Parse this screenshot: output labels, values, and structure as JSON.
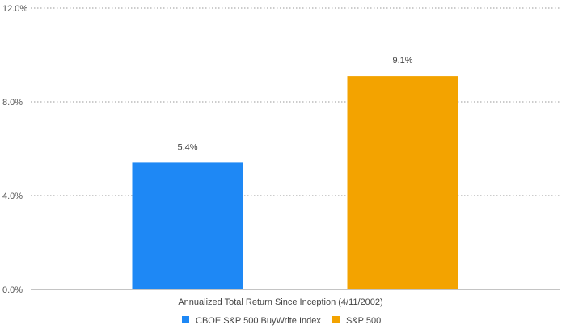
{
  "chart_data": {
    "type": "bar",
    "categories": [
      "Annualized Total Return Since Inception (4/11/2002)"
    ],
    "series": [
      {
        "name": "CBOE S&P 500 BuyWrite Index",
        "values": [
          5.4
        ],
        "color": "#1E88F5"
      },
      {
        "name": "S&P 500",
        "values": [
          9.1
        ],
        "color": "#F3A300"
      }
    ],
    "data_labels": [
      "5.4%",
      "9.1%"
    ],
    "y_ticks": [
      {
        "value": 0,
        "label": "0.0%"
      },
      {
        "value": 4,
        "label": "4.0%"
      },
      {
        "value": 8,
        "label": "8.0%"
      },
      {
        "value": 12,
        "label": "12.0%"
      }
    ],
    "ylim": [
      0,
      12
    ],
    "grid": true,
    "legend_position": "bottom",
    "title": "",
    "xlabel": "",
    "ylabel": ""
  }
}
